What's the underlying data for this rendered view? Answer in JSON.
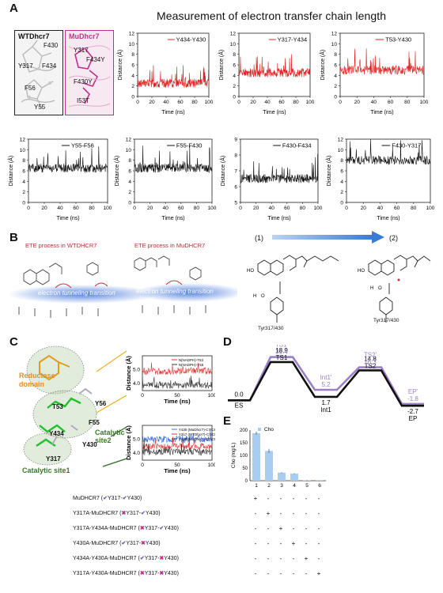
{
  "panel_a": {
    "letter": "A",
    "title": "Measurement of electron transfer chain length",
    "wt_label": "WTDhcr7",
    "mu_label": "MuDhcr7",
    "wt_residues": [
      "F430",
      "Y317",
      "F434",
      "F56",
      "Y55"
    ],
    "mu_residues": [
      "Y317",
      "F434Y",
      "F430Y",
      "I53T"
    ]
  },
  "panel_b": {
    "letter": "B",
    "wt_title": "ETE process in WTDHCR7",
    "mu_title": "ETE process in MuDHCR7",
    "tunnel_label": "electron tunneling transition",
    "step1": "(1)",
    "step2": "(2)",
    "tyr_label": "Tyr317/430"
  },
  "panel_c": {
    "letter": "C",
    "reductase_label": "Reductase domain",
    "labels": [
      "T53",
      "Y56",
      "F55",
      "Y434",
      "Y430",
      "Y317"
    ],
    "site2": "Catalytic site2",
    "site1": "Catalytic site1",
    "top_legend": [
      "N(NADPH)-T53",
      "N(NADPH)-Y55"
    ],
    "bottom_legend": [
      "Y430 (MuDhcr7)-C7/C8",
      "Y317 (WTDhcr7)-C7/C8",
      "Y430 (MuDhcr7)-C7/C8"
    ]
  },
  "panel_d": {
    "letter": "D",
    "points": [
      {
        "state": "ES",
        "wt": "0.0",
        "mu": ""
      },
      {
        "state": "TS1",
        "wt": "18.9",
        "mu": "21.4",
        "mu_name": "TS1'"
      },
      {
        "state": "Int1",
        "wt": "1.7",
        "mu": "5.2",
        "mu_name": "Int1'"
      },
      {
        "state": "TS2",
        "wt": "14.8",
        "mu": "16.3",
        "mu_name": "TS2'"
      },
      {
        "state": "EP",
        "wt": "-2.7",
        "mu": "-1.8",
        "mu_name": "EP'"
      }
    ],
    "colors": {
      "wt": "#111111",
      "mu": "#9a7fc9"
    }
  },
  "panel_e": {
    "letter": "E",
    "legend": "Cho",
    "table_rows": [
      {
        "name": "MuDHCR7",
        "y317": "check",
        "y430": "check",
        "cols": [
          "+",
          "-",
          "-",
          "-",
          "-",
          "-"
        ]
      },
      {
        "name": "Y317A-MuDHCR7",
        "y317": "cross",
        "y430": "check",
        "cols": [
          "-",
          "+",
          "-",
          "-",
          "-",
          "-"
        ]
      },
      {
        "name": "Y317A-Y434A-MuDHCR7",
        "y317": "cross",
        "y430": "check",
        "cols": [
          "-",
          "-",
          "+",
          "-",
          "-",
          "-"
        ]
      },
      {
        "name": "Y430A-MuDHCR7",
        "y317": "check",
        "y430": "cross",
        "cols": [
          "-",
          "-",
          "-",
          "+",
          "-",
          "-"
        ]
      },
      {
        "name": "Y434A-Y430A-MuDHCR7",
        "y317": "check",
        "y430": "cross",
        "cols": [
          "-",
          "-",
          "-",
          "-",
          "+",
          "-"
        ]
      },
      {
        "name": "Y317A-Y430A-MuDHCR7",
        "y317": "cross",
        "y430": "cross",
        "cols": [
          "-",
          "-",
          "-",
          "-",
          "-",
          "+"
        ]
      }
    ],
    "y317_text": "Y317-",
    "y430_text": "Y430)"
  },
  "chart_data": [
    {
      "type": "line",
      "series": [
        {
          "name": "Y434-Y430",
          "color": "#e02020"
        }
      ],
      "xlabel": "Time (ns)",
      "ylabel": "Distance (Å)",
      "xlim": [
        0,
        100
      ],
      "ylim": [
        0,
        12
      ],
      "mean": 2.5,
      "xticks": [
        0,
        20,
        40,
        60,
        80,
        100
      ],
      "yticks": [
        0,
        2,
        4,
        6,
        8,
        10,
        12
      ]
    },
    {
      "type": "line",
      "series": [
        {
          "name": "Y317-Y434",
          "color": "#e02020"
        }
      ],
      "xlabel": "Time (ns)",
      "ylabel": "Distance (Å)",
      "xlim": [
        0,
        100
      ],
      "ylim": [
        0,
        12
      ],
      "mean": 4.5,
      "xticks": [
        0,
        20,
        40,
        60,
        80,
        100
      ],
      "yticks": [
        0,
        2,
        4,
        6,
        8,
        10,
        12
      ]
    },
    {
      "type": "line",
      "series": [
        {
          "name": "T53-Y430",
          "color": "#e02020"
        }
      ],
      "xlabel": "Time (ns)",
      "ylabel": "Distance (Å)",
      "xlim": [
        0,
        100
      ],
      "ylim": [
        0,
        12
      ],
      "mean": 5.0,
      "xticks": [
        0,
        20,
        40,
        60,
        80,
        100
      ],
      "yticks": [
        0,
        2,
        4,
        6,
        8,
        10,
        12
      ]
    },
    {
      "type": "line",
      "series": [
        {
          "name": "Y55-F56",
          "color": "#111111"
        }
      ],
      "xlabel": "Time (ns)",
      "ylabel": "Distance (Å)",
      "xlim": [
        0,
        100
      ],
      "ylim": [
        0,
        12
      ],
      "mean": 6.5,
      "xticks": [
        0,
        20,
        40,
        60,
        80,
        100
      ],
      "yticks": [
        0,
        2,
        4,
        6,
        8,
        10,
        12
      ]
    },
    {
      "type": "line",
      "series": [
        {
          "name": "F55-F430",
          "color": "#111111"
        }
      ],
      "xlabel": "Time (ns)",
      "ylabel": "Distance (Å)",
      "xlim": [
        0,
        100
      ],
      "ylim": [
        0,
        12
      ],
      "mean": 6.5,
      "xticks": [
        0,
        20,
        40,
        60,
        80,
        100
      ],
      "yticks": [
        0,
        2,
        4,
        6,
        8,
        10,
        12
      ]
    },
    {
      "type": "line",
      "series": [
        {
          "name": "F430-F434",
          "color": "#111111"
        }
      ],
      "xlabel": "Time (ns)",
      "ylabel": "Distance (Å)",
      "xlim": [
        0,
        100
      ],
      "ylim": [
        5,
        9
      ],
      "mean": 6.5,
      "xticks": [
        0,
        20,
        40,
        60,
        80,
        100
      ],
      "yticks": [
        5,
        6,
        7,
        8,
        9
      ]
    },
    {
      "type": "line",
      "series": [
        {
          "name": "F430-Y317",
          "color": "#111111"
        }
      ],
      "xlabel": "Time (ns)",
      "ylabel": "Distance (Å)",
      "xlim": [
        0,
        100
      ],
      "ylim": [
        0,
        12
      ],
      "mean": 8.0,
      "xticks": [
        0,
        20,
        40,
        60,
        80,
        100
      ],
      "yticks": [
        0,
        2,
        4,
        6,
        8,
        10,
        12
      ]
    },
    {
      "type": "bar",
      "categories": [
        "1",
        "2",
        "3",
        "4",
        "5",
        "6"
      ],
      "values": [
        188,
        118,
        32,
        28,
        2,
        1
      ],
      "errors": [
        6,
        8,
        2,
        2,
        1,
        0
      ],
      "ylabel": "Cho (mg/L)",
      "ylim": [
        0,
        200
      ],
      "yticks": [
        0,
        50,
        100,
        150,
        200
      ],
      "color": "#a9cdee"
    }
  ]
}
